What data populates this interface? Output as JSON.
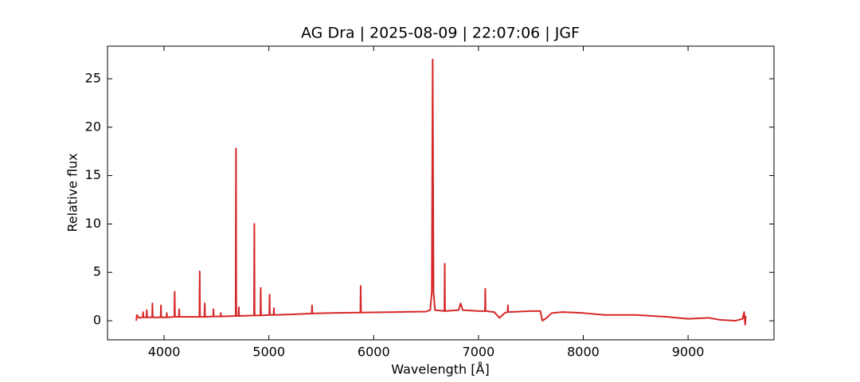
{
  "chart_data": {
    "type": "line",
    "title": "AG Dra | 2025-08-09 | 22:07:06 | JGF",
    "x_label": "Wavelength [Å]",
    "y_label": "Relative flux",
    "xlim": [
      3460,
      9820
    ],
    "ylim": [
      -1.97,
      28.37
    ],
    "xticks": [
      4000,
      5000,
      6000,
      7000,
      8000,
      9000
    ],
    "yticks": [
      0,
      5,
      10,
      15,
      20,
      25
    ],
    "grid": false,
    "x": [
      3735,
      3740,
      3760,
      3797,
      3800,
      3803,
      3832,
      3835,
      3838,
      3886,
      3889,
      3892,
      3967,
      3970,
      3973,
      4023,
      4026,
      4029,
      4098,
      4101,
      4104,
      4141,
      4144,
      4147,
      4337,
      4340,
      4343,
      4385,
      4388,
      4391,
      4468,
      4471,
      4474,
      4538,
      4541,
      4544,
      4683,
      4686,
      4689,
      4710,
      4713,
      4716,
      4858,
      4861,
      4864,
      4919,
      4922,
      4925,
      5004,
      5007,
      5010,
      5045,
      5048,
      5051,
      5200,
      5409,
      5412,
      5415,
      5600,
      5873,
      5876,
      5879,
      6200,
      6500,
      6540,
      6555,
      6563,
      6571,
      6585,
      6675,
      6678,
      6681,
      6810,
      6830,
      6850,
      7000,
      7062,
      7065,
      7068,
      7150,
      7200,
      7250,
      7278,
      7281,
      7284,
      7500,
      7590,
      7610,
      7650,
      7700,
      7800,
      8000,
      8200,
      8500,
      8800,
      9000,
      9200,
      9300,
      9450,
      9520,
      9535,
      9545,
      9550
    ],
    "series": [
      {
        "name": "spectrum",
        "color": "#d62728",
        "values": [
          0.0,
          0.6,
          0.3,
          0.35,
          0.9,
          0.35,
          0.35,
          1.1,
          0.35,
          0.35,
          1.8,
          0.35,
          0.35,
          1.6,
          0.35,
          0.35,
          0.8,
          0.35,
          0.4,
          3.0,
          0.4,
          0.4,
          1.2,
          0.4,
          0.4,
          5.1,
          0.4,
          0.4,
          1.8,
          0.4,
          0.45,
          1.2,
          0.45,
          0.45,
          0.8,
          0.45,
          0.5,
          17.8,
          0.5,
          0.5,
          1.4,
          0.5,
          0.55,
          10.0,
          0.55,
          0.55,
          3.4,
          0.55,
          0.6,
          2.7,
          0.6,
          0.6,
          1.3,
          0.6,
          0.65,
          0.75,
          1.6,
          0.75,
          0.8,
          0.85,
          3.6,
          0.85,
          0.9,
          0.95,
          1.1,
          3,
          27.0,
          3,
          1.1,
          1.0,
          5.9,
          1.0,
          1.1,
          1.8,
          1.1,
          1.0,
          1.0,
          3.3,
          1.0,
          0.9,
          0.3,
          0.8,
          0.9,
          1.6,
          0.9,
          1.0,
          1.0,
          0.0,
          0.3,
          0.8,
          0.9,
          0.8,
          0.6,
          0.6,
          0.4,
          0.2,
          0.3,
          0.1,
          0.0,
          0.2,
          0.9,
          -0.4,
          0.5
        ]
      }
    ]
  }
}
